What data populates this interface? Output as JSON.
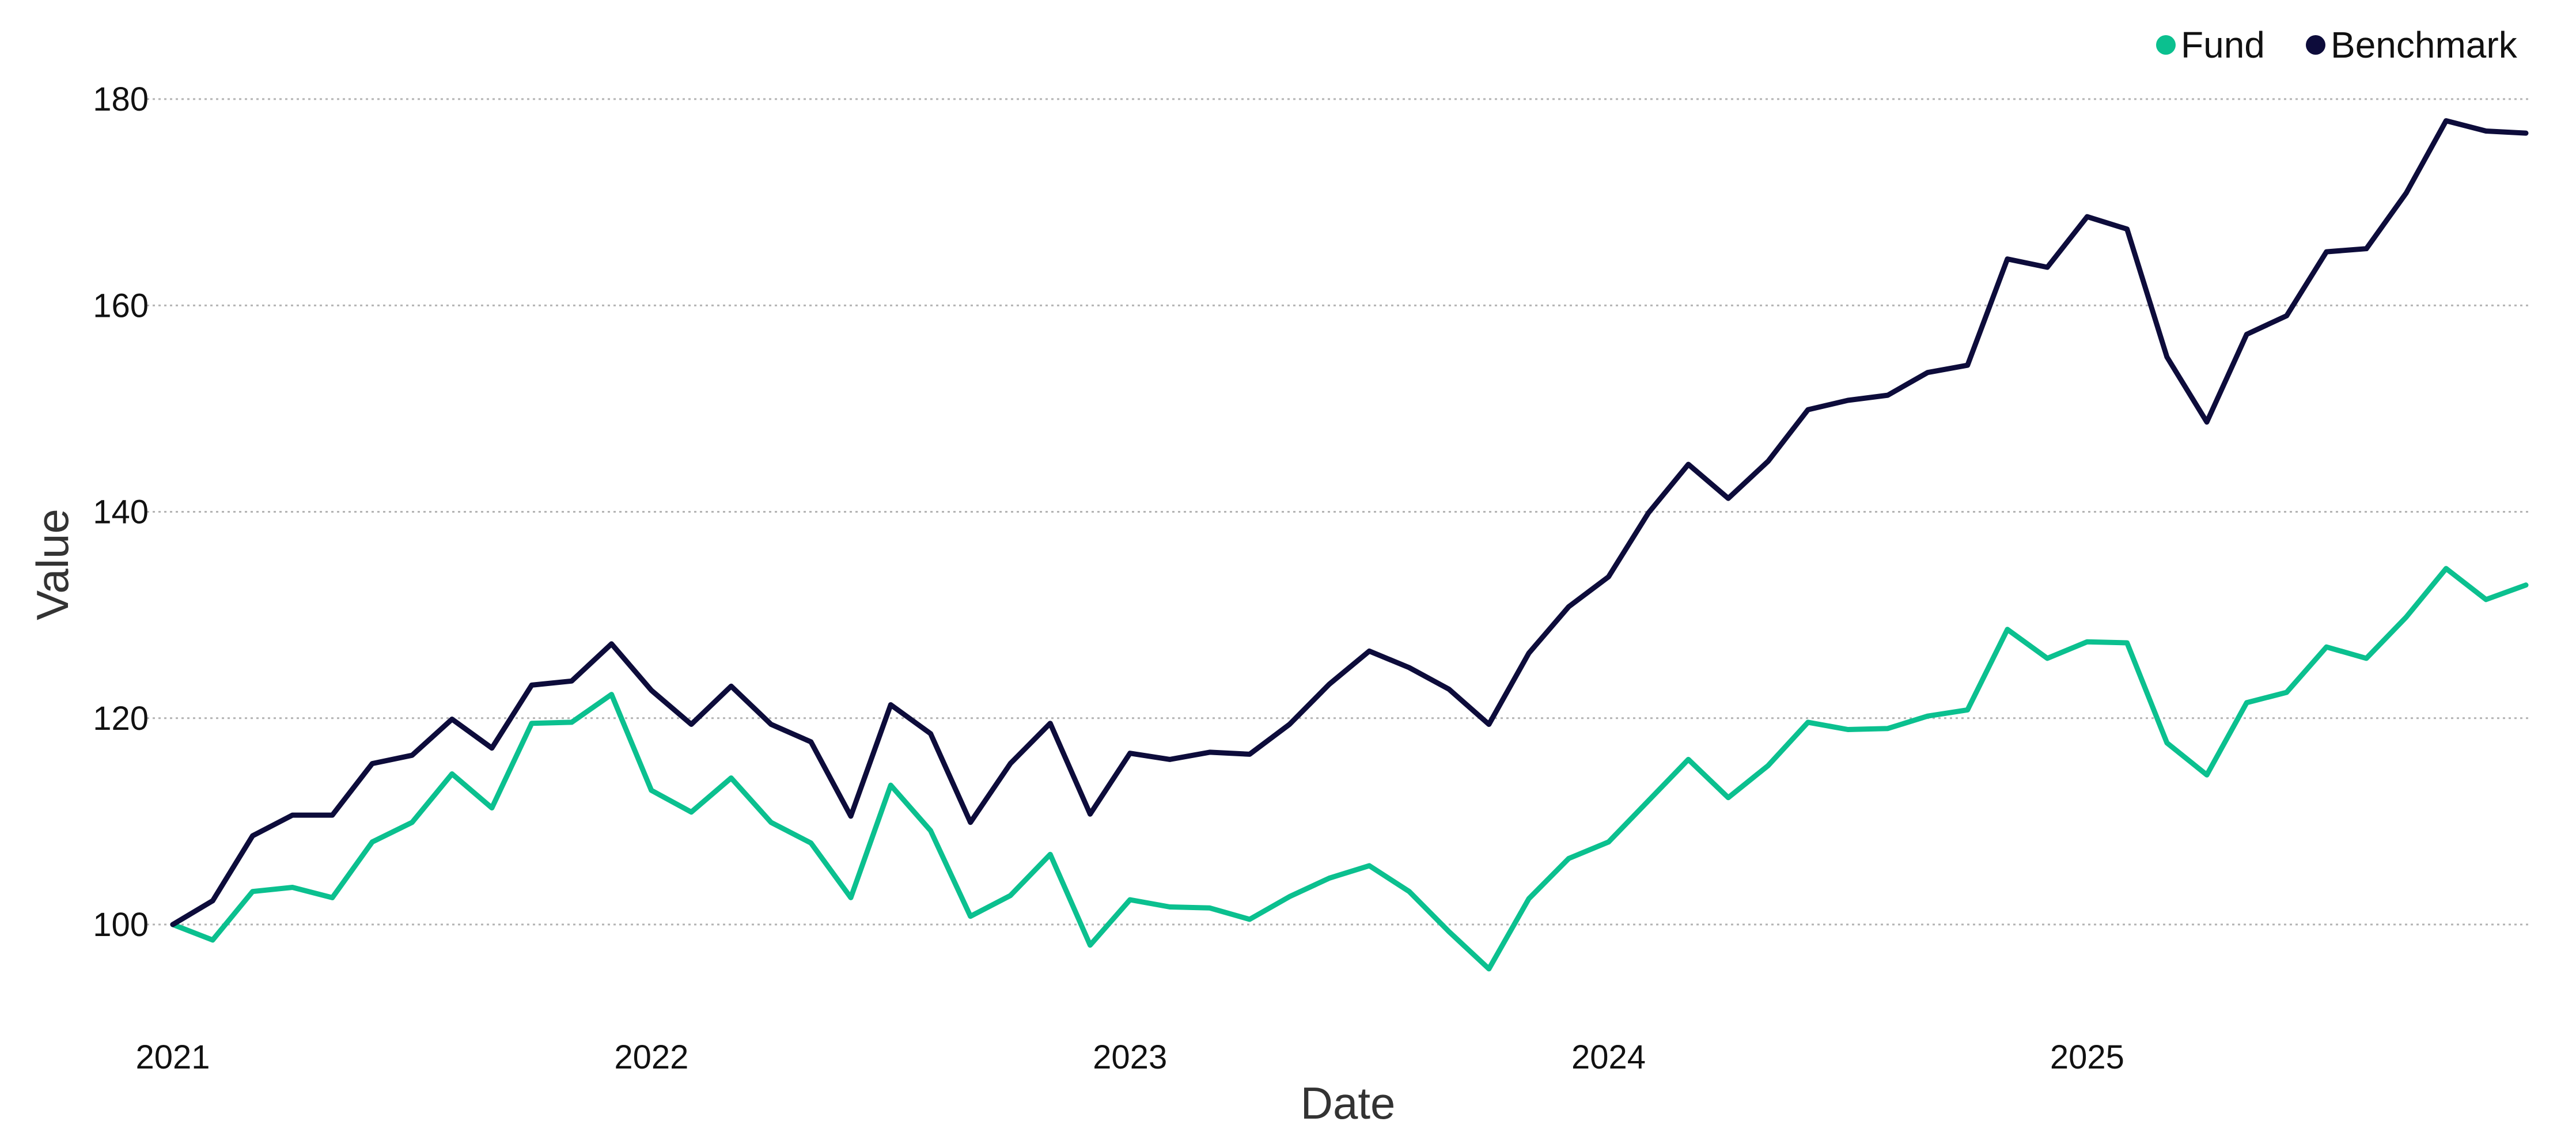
{
  "chart_data": {
    "type": "line",
    "title": "",
    "xlabel": "Date",
    "ylabel": "Value",
    "x_ticks": [
      "2021",
      "2022",
      "2023",
      "2024",
      "2025"
    ],
    "y_ticks": [
      100,
      120,
      140,
      160,
      180
    ],
    "xlim": [
      "2021-01",
      "2025-12"
    ],
    "ylim": [
      88,
      183
    ],
    "grid": "horizontal dotted",
    "legend": "top-right",
    "x": [
      "2021-01",
      "2021-02",
      "2021-03",
      "2021-04",
      "2021-05",
      "2021-06",
      "2021-07",
      "2021-08",
      "2021-09",
      "2021-10",
      "2021-11",
      "2021-12",
      "2022-01",
      "2022-02",
      "2022-03",
      "2022-04",
      "2022-05",
      "2022-06",
      "2022-07",
      "2022-08",
      "2022-09",
      "2022-10",
      "2022-11",
      "2022-12",
      "2023-01",
      "2023-02",
      "2023-03",
      "2023-04",
      "2023-05",
      "2023-06",
      "2023-07",
      "2023-08",
      "2023-09",
      "2023-10",
      "2023-11",
      "2023-12",
      "2024-01",
      "2024-02",
      "2024-03",
      "2024-04",
      "2024-05",
      "2024-06",
      "2024-07",
      "2024-08",
      "2024-09",
      "2024-10",
      "2024-11",
      "2024-12",
      "2025-01",
      "2025-02",
      "2025-03",
      "2025-04",
      "2025-05",
      "2025-06",
      "2025-07",
      "2025-08",
      "2025-09",
      "2025-10",
      "2025-11",
      "2025-12"
    ],
    "series": [
      {
        "name": "Fund",
        "color": "#0bc08f",
        "values": [
          100.0,
          98.5,
          103.2,
          103.6,
          102.6,
          108.0,
          109.9,
          114.6,
          111.3,
          119.5,
          119.6,
          122.3,
          113.0,
          110.9,
          114.2,
          109.9,
          107.9,
          102.6,
          113.5,
          109.1,
          100.8,
          102.8,
          106.8,
          98.0,
          102.4,
          101.7,
          101.6,
          100.5,
          102.7,
          104.5,
          105.7,
          103.2,
          99.3,
          95.7,
          102.5,
          106.4,
          108.0,
          112.0,
          116.0,
          112.3,
          115.4,
          119.6,
          118.9,
          119.0,
          120.2,
          120.8,
          128.6,
          125.8,
          127.4,
          127.3,
          117.6,
          114.5,
          121.5,
          122.5,
          126.9,
          125.8,
          129.8,
          134.5,
          131.5,
          132.9
        ]
      },
      {
        "name": "Benchmark",
        "color": "#0d0c3b",
        "values": [
          100.0,
          102.3,
          108.6,
          110.6,
          110.6,
          115.6,
          116.4,
          119.9,
          117.1,
          123.2,
          123.6,
          127.2,
          122.7,
          119.4,
          123.1,
          119.4,
          117.7,
          110.5,
          121.3,
          118.5,
          109.9,
          115.6,
          119.5,
          110.7,
          116.6,
          116.0,
          116.7,
          116.5,
          119.4,
          123.3,
          126.5,
          124.9,
          122.8,
          119.4,
          126.3,
          130.8,
          133.7,
          139.9,
          144.6,
          141.3,
          144.9,
          149.9,
          150.8,
          151.3,
          153.5,
          154.2,
          164.5,
          163.7,
          168.6,
          167.4,
          155.0,
          148.7,
          157.2,
          159.0,
          165.2,
          165.5,
          170.9,
          177.9,
          176.9,
          176.7
        ]
      }
    ]
  }
}
